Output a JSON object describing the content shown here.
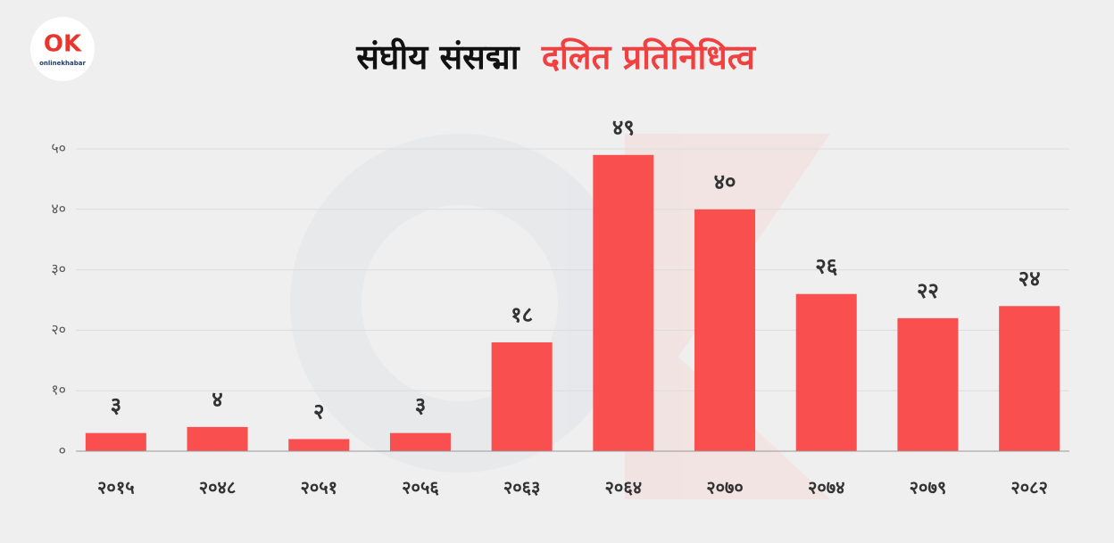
{
  "logo": {
    "mark": "OK",
    "text": "onlinekhabar"
  },
  "chart_data": {
    "type": "bar",
    "title": "संघीय संसद्मा",
    "title_highlight": "दलित प्रतिनिधित्व",
    "categories": [
      "२०१५",
      "२०४८",
      "२०५१",
      "२०५६",
      "२०६३",
      "२०६४",
      "२०७०",
      "२०७४",
      "२०७९",
      "२०८२"
    ],
    "values": [
      3,
      4,
      2,
      3,
      18,
      49,
      40,
      26,
      22,
      24
    ],
    "value_labels": [
      "३",
      "४",
      "२",
      "३",
      "१८",
      "४९",
      "४०",
      "२६",
      "२२",
      "२४"
    ],
    "color": "#f94f4f",
    "ylim": [
      0,
      50
    ],
    "yticks": [
      {
        "value": 0,
        "label": "०"
      },
      {
        "value": 10,
        "label": "१०"
      },
      {
        "value": 20,
        "label": "२०"
      },
      {
        "value": 30,
        "label": "३०"
      },
      {
        "value": 40,
        "label": "४०"
      },
      {
        "value": 50,
        "label": "५०"
      }
    ],
    "grid": true
  }
}
